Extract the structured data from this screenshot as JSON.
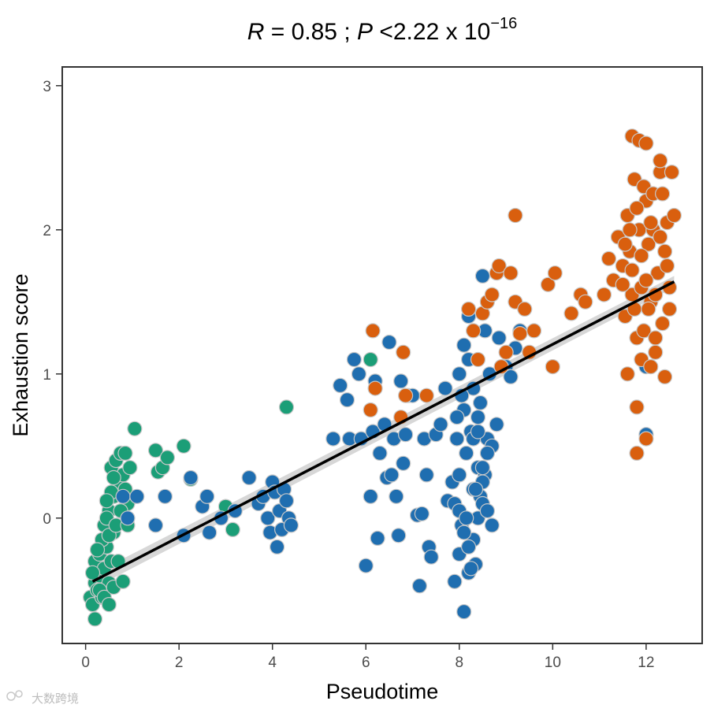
{
  "chart_data": {
    "type": "scatter",
    "title": {
      "r_symbol": "R",
      "r_text": " = 0.85 ; ",
      "p_symbol": "P",
      "p_text": " <2.22 x 10",
      "p_exponent": "−16"
    },
    "xlabel": "Pseudotime",
    "ylabel": "Exhaustion score",
    "xlim": [
      -0.5,
      13.2
    ],
    "ylim": [
      -0.87,
      3.13
    ],
    "x_ticks": [
      0,
      2,
      4,
      6,
      8,
      10,
      12
    ],
    "y_ticks": [
      0,
      1,
      2,
      3
    ],
    "grid": false,
    "legend": "none",
    "colors": {
      "green": "#1b9e77",
      "blue": "#1f6eb0",
      "orange": "#d95f0e",
      "point_stroke": "#c8c8c8",
      "line": "#000000",
      "band": "#bdbdbd"
    },
    "regression": {
      "x": [
        0.15,
        12.6
      ],
      "y": [
        -0.44,
        1.64
      ],
      "band_halfwidth": [
        0.05,
        0.04
      ]
    },
    "series": [
      {
        "color": "green",
        "points": [
          [
            0.1,
            -0.55
          ],
          [
            0.15,
            -0.6
          ],
          [
            0.2,
            -0.45
          ],
          [
            0.25,
            -0.5
          ],
          [
            0.3,
            -0.4
          ],
          [
            0.35,
            -0.55
          ],
          [
            0.2,
            -0.3
          ],
          [
            0.3,
            -0.25
          ],
          [
            0.4,
            -0.35
          ],
          [
            0.45,
            -0.2
          ],
          [
            0.5,
            -0.45
          ],
          [
            0.55,
            -0.3
          ],
          [
            0.6,
            -0.1
          ],
          [
            0.4,
            -0.05
          ],
          [
            0.5,
            0.05
          ],
          [
            0.6,
            0.15
          ],
          [
            0.7,
            0.25
          ],
          [
            0.8,
            0.3
          ],
          [
            0.55,
            0.35
          ],
          [
            0.65,
            0.4
          ],
          [
            0.75,
            0.45
          ],
          [
            0.85,
            0.2
          ],
          [
            0.9,
            0.1
          ],
          [
            0.95,
            0.35
          ],
          [
            1.05,
            0.62
          ],
          [
            0.2,
            -0.7
          ],
          [
            0.35,
            -0.15
          ],
          [
            0.45,
            0.0
          ],
          [
            0.25,
            -0.22
          ],
          [
            0.15,
            -0.38
          ],
          [
            0.3,
            -0.5
          ],
          [
            0.4,
            -0.55
          ],
          [
            0.5,
            -0.6
          ],
          [
            0.6,
            -0.48
          ],
          [
            0.7,
            -0.3
          ],
          [
            0.8,
            -0.44
          ],
          [
            0.5,
            -0.12
          ],
          [
            0.65,
            -0.05
          ],
          [
            0.55,
            0.18
          ],
          [
            0.45,
            0.12
          ],
          [
            0.6,
            0.28
          ],
          [
            0.75,
            0.05
          ],
          [
            0.85,
            0.45
          ],
          [
            1.5,
            0.47
          ],
          [
            1.55,
            0.32
          ],
          [
            1.65,
            0.35
          ],
          [
            1.75,
            0.42
          ],
          [
            2.1,
            0.5
          ],
          [
            2.25,
            0.27
          ],
          [
            3.0,
            0.08
          ],
          [
            3.15,
            -0.08
          ],
          [
            4.3,
            0.77
          ],
          [
            6.1,
            1.1
          ],
          [
            0.9,
            -0.05
          ]
        ]
      },
      {
        "color": "blue",
        "points": [
          [
            0.8,
            0.15
          ],
          [
            0.9,
            0.0
          ],
          [
            1.1,
            0.15
          ],
          [
            1.5,
            -0.05
          ],
          [
            1.7,
            0.15
          ],
          [
            2.1,
            -0.12
          ],
          [
            2.25,
            0.28
          ],
          [
            2.5,
            0.08
          ],
          [
            2.6,
            0.15
          ],
          [
            2.65,
            -0.1
          ],
          [
            2.9,
            0.0
          ],
          [
            3.2,
            0.05
          ],
          [
            3.5,
            0.28
          ],
          [
            3.7,
            0.1
          ],
          [
            3.8,
            0.15
          ],
          [
            3.9,
            0.0
          ],
          [
            3.95,
            -0.1
          ],
          [
            4.0,
            0.25
          ],
          [
            4.05,
            0.18
          ],
          [
            4.1,
            -0.2
          ],
          [
            4.15,
            0.05
          ],
          [
            4.2,
            -0.08
          ],
          [
            4.25,
            0.2
          ],
          [
            4.3,
            0.12
          ],
          [
            4.35,
            0.0
          ],
          [
            4.4,
            -0.05
          ],
          [
            5.3,
            0.55
          ],
          [
            5.45,
            0.92
          ],
          [
            5.6,
            0.82
          ],
          [
            5.65,
            0.55
          ],
          [
            5.75,
            1.1
          ],
          [
            5.85,
            1.0
          ],
          [
            5.9,
            0.55
          ],
          [
            6.0,
            -0.33
          ],
          [
            6.1,
            0.15
          ],
          [
            6.15,
            0.6
          ],
          [
            6.2,
            0.95
          ],
          [
            6.25,
            -0.14
          ],
          [
            6.3,
            0.45
          ],
          [
            6.4,
            0.65
          ],
          [
            6.45,
            0.28
          ],
          [
            6.5,
            1.22
          ],
          [
            6.55,
            0.3
          ],
          [
            6.6,
            0.55
          ],
          [
            6.65,
            0.15
          ],
          [
            6.7,
            -0.12
          ],
          [
            6.75,
            0.95
          ],
          [
            6.8,
            0.38
          ],
          [
            6.85,
            0.58
          ],
          [
            6.9,
            0.85
          ],
          [
            7.0,
            0.85
          ],
          [
            7.1,
            0.02
          ],
          [
            7.15,
            -0.47
          ],
          [
            7.2,
            0.03
          ],
          [
            7.25,
            0.55
          ],
          [
            7.3,
            0.3
          ],
          [
            7.35,
            -0.2
          ],
          [
            7.4,
            -0.27
          ],
          [
            7.5,
            0.58
          ],
          [
            7.6,
            0.65
          ],
          [
            7.7,
            0.9
          ],
          [
            7.75,
            0.12
          ],
          [
            7.85,
            0.25
          ],
          [
            7.9,
            0.1
          ],
          [
            7.95,
            0.55
          ],
          [
            8.0,
            0.3
          ],
          [
            8.05,
            -0.05
          ],
          [
            8.1,
            0.75
          ],
          [
            8.15,
            0.45
          ],
          [
            8.2,
            1.1
          ],
          [
            8.25,
            0.6
          ],
          [
            8.3,
            0.2
          ],
          [
            8.35,
            -0.32
          ],
          [
            8.4,
            0.35
          ],
          [
            8.45,
            0.8
          ],
          [
            8.5,
            1.68
          ],
          [
            8.55,
            1.3
          ],
          [
            8.6,
            0.55
          ],
          [
            8.65,
            1.0
          ],
          [
            8.7,
            0.5
          ],
          [
            8.8,
            0.65
          ],
          [
            8.85,
            1.25
          ],
          [
            9.0,
            1.05
          ],
          [
            9.1,
            0.98
          ],
          [
            9.2,
            1.18
          ],
          [
            9.3,
            1.3
          ],
          [
            7.9,
            -0.44
          ],
          [
            8.0,
            -0.25
          ],
          [
            8.1,
            -0.65
          ],
          [
            8.2,
            -0.38
          ],
          [
            8.3,
            -0.15
          ],
          [
            8.4,
            0.0
          ],
          [
            8.45,
            0.15
          ],
          [
            8.5,
            0.1
          ],
          [
            8.55,
            0.3
          ],
          [
            8.6,
            0.45
          ],
          [
            8.0,
            1.0
          ],
          [
            8.1,
            1.2
          ],
          [
            8.2,
            1.4
          ],
          [
            8.3,
            0.9
          ],
          [
            8.4,
            0.7
          ],
          [
            8.5,
            0.25
          ],
          [
            8.6,
            0.05
          ],
          [
            8.7,
            -0.05
          ],
          [
            8.0,
            0.05
          ],
          [
            8.1,
            -0.1
          ],
          [
            8.2,
            -0.2
          ],
          [
            8.3,
            0.55
          ],
          [
            8.4,
            0.6
          ],
          [
            8.5,
            0.35
          ],
          [
            7.95,
            0.7
          ],
          [
            8.05,
            0.85
          ],
          [
            8.15,
            0.0
          ],
          [
            8.25,
            -0.35
          ],
          [
            8.35,
            0.2
          ],
          [
            12.0,
            1.05
          ],
          [
            12.0,
            0.58
          ]
        ]
      },
      {
        "color": "orange",
        "points": [
          [
            6.15,
            1.3
          ],
          [
            6.2,
            0.9
          ],
          [
            6.1,
            0.75
          ],
          [
            6.8,
            1.15
          ],
          [
            6.85,
            0.85
          ],
          [
            6.75,
            0.7
          ],
          [
            7.3,
            0.85
          ],
          [
            8.2,
            1.45
          ],
          [
            8.3,
            1.3
          ],
          [
            8.4,
            1.1
          ],
          [
            8.5,
            1.42
          ],
          [
            8.6,
            1.5
          ],
          [
            8.7,
            1.55
          ],
          [
            8.8,
            1.7
          ],
          [
            8.85,
            1.75
          ],
          [
            8.9,
            1.05
          ],
          [
            9.0,
            1.15
          ],
          [
            9.1,
            1.7
          ],
          [
            9.2,
            1.5
          ],
          [
            9.2,
            2.1
          ],
          [
            9.3,
            1.28
          ],
          [
            9.4,
            1.45
          ],
          [
            9.5,
            1.15
          ],
          [
            9.6,
            1.3
          ],
          [
            9.9,
            1.62
          ],
          [
            10.0,
            1.05
          ],
          [
            10.05,
            1.7
          ],
          [
            10.4,
            1.42
          ],
          [
            10.6,
            1.55
          ],
          [
            10.7,
            1.5
          ],
          [
            11.1,
            1.55
          ],
          [
            11.2,
            1.8
          ],
          [
            11.3,
            1.65
          ],
          [
            11.4,
            1.95
          ],
          [
            11.5,
            1.75
          ],
          [
            11.55,
            1.4
          ],
          [
            11.6,
            2.1
          ],
          [
            11.65,
            1.85
          ],
          [
            11.7,
            1.55
          ],
          [
            11.75,
            2.35
          ],
          [
            11.8,
            1.25
          ],
          [
            11.85,
            2.0
          ],
          [
            11.9,
            1.6
          ],
          [
            11.95,
            1.3
          ],
          [
            12.0,
            2.2
          ],
          [
            12.05,
            1.9
          ],
          [
            12.1,
            1.5
          ],
          [
            12.15,
            2.0
          ],
          [
            12.2,
            1.15
          ],
          [
            12.25,
            1.7
          ],
          [
            12.3,
            2.4
          ],
          [
            12.35,
            1.35
          ],
          [
            12.4,
            1.85
          ],
          [
            12.45,
            2.05
          ],
          [
            12.5,
            1.6
          ],
          [
            12.55,
            2.4
          ],
          [
            12.6,
            2.1
          ],
          [
            11.7,
            2.65
          ],
          [
            11.85,
            2.62
          ],
          [
            12.0,
            2.6
          ],
          [
            12.3,
            2.48
          ],
          [
            11.8,
            0.77
          ],
          [
            11.8,
            0.45
          ],
          [
            12.0,
            0.55
          ],
          [
            12.4,
            0.98
          ],
          [
            11.6,
            1.0
          ],
          [
            11.9,
            1.1
          ],
          [
            12.1,
            1.05
          ],
          [
            12.2,
            1.25
          ],
          [
            11.75,
            1.45
          ],
          [
            11.95,
            2.3
          ],
          [
            12.15,
            2.25
          ],
          [
            11.65,
            2.0
          ],
          [
            12.35,
            2.25
          ],
          [
            11.5,
            1.62
          ],
          [
            11.55,
            1.9
          ],
          [
            11.7,
            1.72
          ],
          [
            11.9,
            1.82
          ],
          [
            12.05,
            1.45
          ],
          [
            12.2,
            1.55
          ],
          [
            12.3,
            1.95
          ],
          [
            12.45,
            1.75
          ],
          [
            12.5,
            1.45
          ],
          [
            11.8,
            2.15
          ],
          [
            12.0,
            1.65
          ],
          [
            12.1,
            2.05
          ]
        ]
      }
    ]
  },
  "watermark": "大数跨境"
}
